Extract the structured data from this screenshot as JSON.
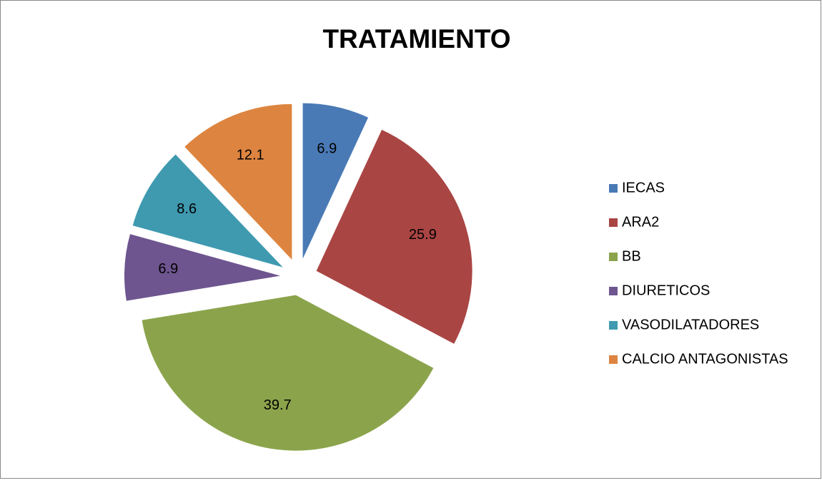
{
  "chart_data": {
    "type": "pie",
    "title": "TRATAMIENTO",
    "categories": [
      "IECAS",
      "ARA2",
      "BB",
      "DIURETICOS",
      "VASODILATADORES",
      "CALCIO ANTAGONISTAS"
    ],
    "values": [
      6.9,
      25.9,
      39.7,
      6.9,
      8.6,
      12.1
    ],
    "colors": [
      "#4a7ab5",
      "#a94543",
      "#8ba44c",
      "#6e558f",
      "#3f9ab0",
      "#dd8540"
    ],
    "legend": "right"
  }
}
